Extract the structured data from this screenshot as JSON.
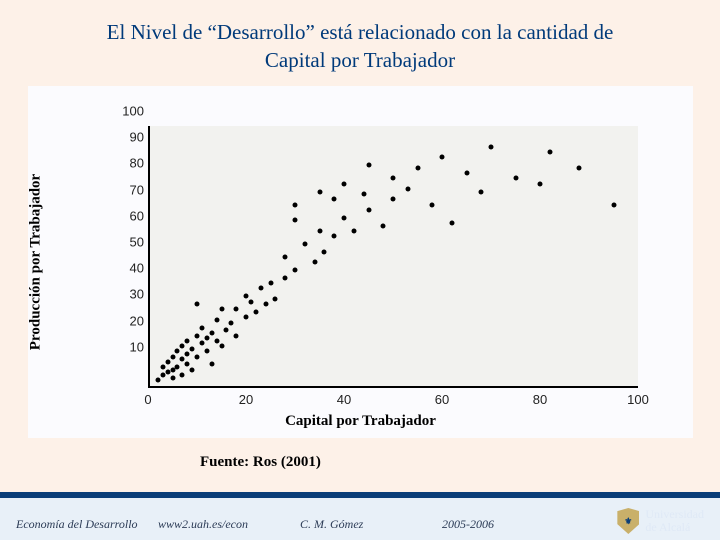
{
  "title_line1": "El Nivel de “Desarrollo” está relacionado con la cantidad de",
  "title_line2": "Capital por Trabajador",
  "chart": {
    "type": "scatter",
    "ylabel": "Producción por Trabajador",
    "xlabel": "Capital por Trabajador",
    "xlim": [
      0,
      100
    ],
    "ylim": [
      0,
      100
    ],
    "xticks": [
      0,
      20,
      40,
      60,
      80,
      100
    ],
    "yticks": [
      10,
      20,
      30,
      40,
      50,
      60,
      70,
      80,
      90,
      100
    ],
    "background_color": "#f2f2ef",
    "point_color": "#000000",
    "point_size": 5,
    "points": [
      [
        2,
        3
      ],
      [
        3,
        5
      ],
      [
        3,
        8
      ],
      [
        4,
        6
      ],
      [
        4,
        10
      ],
      [
        5,
        4
      ],
      [
        5,
        7
      ],
      [
        5,
        12
      ],
      [
        6,
        8
      ],
      [
        6,
        14
      ],
      [
        7,
        5
      ],
      [
        7,
        11
      ],
      [
        7,
        16
      ],
      [
        8,
        9
      ],
      [
        8,
        13
      ],
      [
        8,
        18
      ],
      [
        9,
        7
      ],
      [
        9,
        15
      ],
      [
        10,
        12
      ],
      [
        10,
        20
      ],
      [
        11,
        17
      ],
      [
        11,
        23
      ],
      [
        12,
        14
      ],
      [
        12,
        19
      ],
      [
        13,
        21
      ],
      [
        13,
        9
      ],
      [
        14,
        18
      ],
      [
        14,
        26
      ],
      [
        15,
        16
      ],
      [
        10,
        32
      ],
      [
        15,
        30
      ],
      [
        16,
        22
      ],
      [
        17,
        25
      ],
      [
        18,
        20
      ],
      [
        18,
        30
      ],
      [
        20,
        27
      ],
      [
        20,
        35
      ],
      [
        21,
        33
      ],
      [
        22,
        29
      ],
      [
        23,
        38
      ],
      [
        24,
        32
      ],
      [
        25,
        40
      ],
      [
        26,
        34
      ],
      [
        28,
        42
      ],
      [
        28,
        50
      ],
      [
        30,
        45
      ],
      [
        30,
        64
      ],
      [
        30,
        70
      ],
      [
        32,
        55
      ],
      [
        34,
        48
      ],
      [
        35,
        60
      ],
      [
        35,
        75
      ],
      [
        36,
        52
      ],
      [
        38,
        58
      ],
      [
        38,
        72
      ],
      [
        40,
        65
      ],
      [
        40,
        78
      ],
      [
        42,
        60
      ],
      [
        44,
        74
      ],
      [
        45,
        68
      ],
      [
        45,
        85
      ],
      [
        48,
        62
      ],
      [
        50,
        80
      ],
      [
        50,
        72
      ],
      [
        53,
        76
      ],
      [
        55,
        84
      ],
      [
        58,
        70
      ],
      [
        60,
        88
      ],
      [
        62,
        63
      ],
      [
        65,
        82
      ],
      [
        68,
        75
      ],
      [
        70,
        92
      ],
      [
        75,
        80
      ],
      [
        80,
        78
      ],
      [
        82,
        90
      ],
      [
        88,
        84
      ],
      [
        95,
        70
      ]
    ]
  },
  "source": "Fuente: Ros (2001)",
  "footer": {
    "course": "Economía del Desarrollo",
    "url": "www2.uah.es/econ",
    "author": "C. M. Gómez",
    "year": "2005-2006",
    "university_line1": "Universidad",
    "university_line2": "de Alcalá"
  },
  "colors": {
    "page_bg": "#fdf1e8",
    "title_color": "#003a7a",
    "chart_panel_bg": "#fbfbfe",
    "footer_bar": "#0a3e78",
    "footer_bg": "#e8f0f8"
  }
}
